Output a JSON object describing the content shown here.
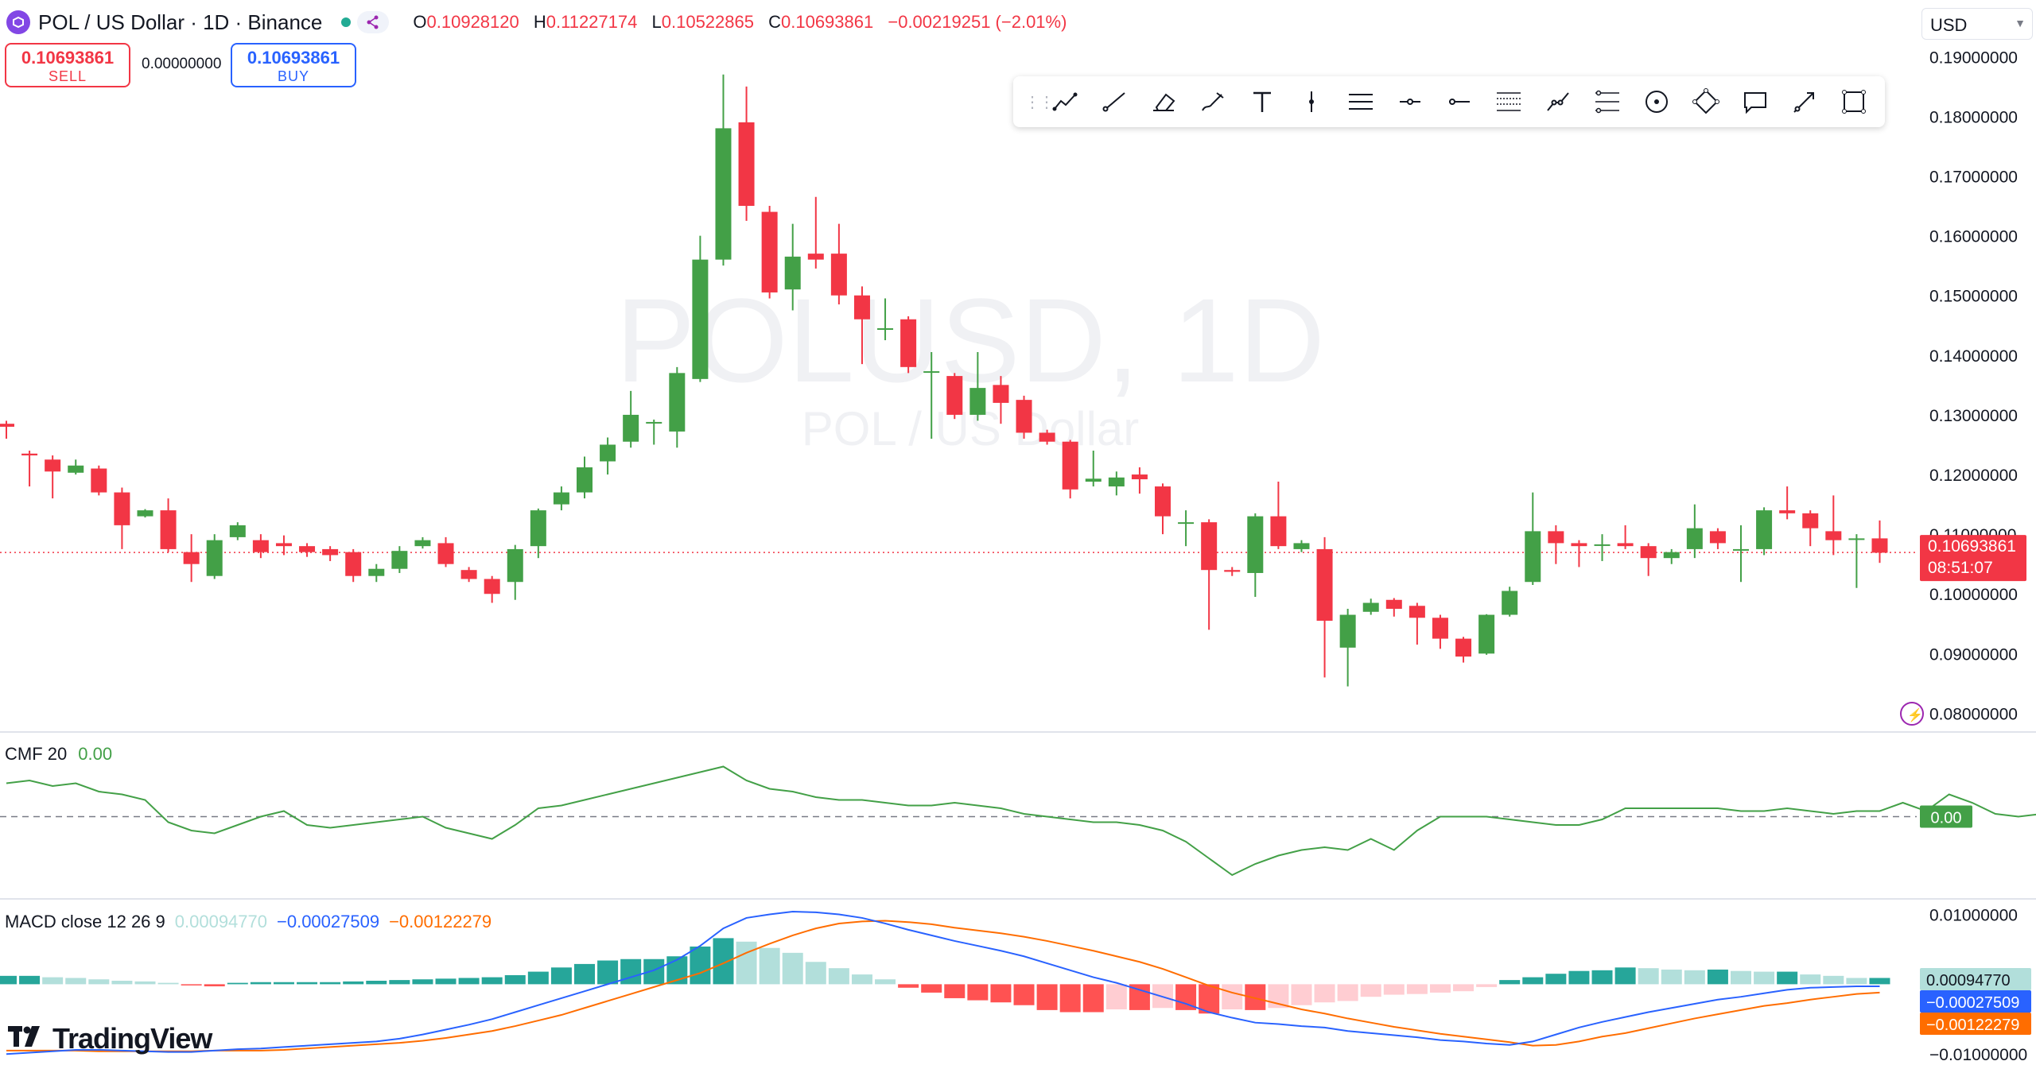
{
  "header": {
    "symbol_title": "POL / US Dollar · 1D · Binance",
    "ohlc": [
      {
        "key": "O",
        "value": "0.10928120"
      },
      {
        "key": "H",
        "value": "0.11227174"
      },
      {
        "key": "L",
        "value": "0.10522865"
      },
      {
        "key": "C",
        "value": "0.10693861"
      }
    ],
    "change": "−0.00219251 (−2.01%)",
    "status_color": "#22ab94"
  },
  "trade": {
    "sell_price": "0.10693861",
    "sell_label": "SELL",
    "spread": "0.00000000",
    "buy_price": "0.10693861",
    "buy_label": "BUY"
  },
  "currency": "USD",
  "watermark": {
    "primary": "POLUSD, 1D",
    "secondary": "POL / US Dollar"
  },
  "toolbar": {
    "icons": [
      "trend-line-icon",
      "ray-icon",
      "eraser-icon",
      "brush-icon",
      "text-icon",
      "vertical-line-icon",
      "parallel-lines-icon",
      "horizontal-ray-icon",
      "horizontal-line-icon",
      "fib-retracement-icon",
      "path-icon",
      "fib-channel-icon",
      "circle-icon",
      "rotated-rectangle-icon",
      "callout-icon",
      "arrow-icon",
      "rectangle-icon"
    ]
  },
  "colors": {
    "up": "#43a047",
    "down": "#f23645",
    "macd": "#2962ff",
    "signal": "#ff6d00",
    "cmf": "#43a047",
    "hist_up_strong": "#26a69a",
    "hist_up_weak": "#b2dfdb",
    "hist_down_strong": "#ff5252",
    "hist_down_weak": "#ffcdd2"
  },
  "chart_data": [
    {
      "type": "candlestick",
      "title": "POL / US Dollar · 1D · Binance",
      "ylim": [
        0.077,
        0.1915
      ],
      "yticks": [
        "0.19000000",
        "0.18000000",
        "0.17000000",
        "0.16000000",
        "0.15000000",
        "0.14000000",
        "0.13000000",
        "0.12000000",
        "0.11000000",
        "0.10000000",
        "0.09000000",
        "0.08000000"
      ],
      "last_price_label": "0.10693861",
      "countdown_label": "08:51:07",
      "last_price": 0.10693861,
      "candles": [
        [
          0.1285,
          0.128,
          0.129,
          0.126
        ],
        [
          0.1235,
          0.1232,
          0.124,
          0.118
        ],
        [
          0.1225,
          0.1205,
          0.1232,
          0.116
        ],
        [
          0.1203,
          0.1215,
          0.1225,
          0.12
        ],
        [
          0.121,
          0.117,
          0.1215,
          0.1165
        ],
        [
          0.117,
          0.1115,
          0.1178,
          0.1075
        ],
        [
          0.113,
          0.114,
          0.1142,
          0.1128
        ],
        [
          0.114,
          0.1075,
          0.116,
          0.107
        ],
        [
          0.107,
          0.105,
          0.11,
          0.102
        ],
        [
          0.103,
          0.109,
          0.11,
          0.1025
        ],
        [
          0.1095,
          0.1115,
          0.112,
          0.109
        ],
        [
          0.109,
          0.107,
          0.11,
          0.106
        ],
        [
          0.1085,
          0.108,
          0.1098,
          0.1065
        ],
        [
          0.108,
          0.107,
          0.1085,
          0.1062
        ],
        [
          0.1075,
          0.1065,
          0.108,
          0.1055
        ],
        [
          0.107,
          0.103,
          0.1075,
          0.102
        ],
        [
          0.103,
          0.1042,
          0.105,
          0.102
        ],
        [
          0.1042,
          0.1072,
          0.108,
          0.1035
        ],
        [
          0.108,
          0.109,
          0.1095,
          0.1076
        ],
        [
          0.1085,
          0.105,
          0.1095,
          0.1045
        ],
        [
          0.104,
          0.1025,
          0.1045,
          0.102
        ],
        [
          0.1025,
          0.1,
          0.103,
          0.0985
        ],
        [
          0.102,
          0.1075,
          0.1082,
          0.099
        ],
        [
          0.108,
          0.114,
          0.1143,
          0.106
        ],
        [
          0.115,
          0.117,
          0.118,
          0.114
        ],
        [
          0.117,
          0.1212,
          0.123,
          0.116
        ],
        [
          0.1222,
          0.125,
          0.1262,
          0.12
        ],
        [
          0.1255,
          0.13,
          0.134,
          0.1245
        ],
        [
          0.1288,
          0.1288,
          0.1292,
          0.125
        ],
        [
          0.1272,
          0.137,
          0.138,
          0.1245
        ],
        [
          0.136,
          0.156,
          0.16,
          0.1355
        ],
        [
          0.156,
          0.178,
          0.187,
          0.155
        ],
        [
          0.179,
          0.165,
          0.185,
          0.1625
        ],
        [
          0.164,
          0.1505,
          0.165,
          0.1495
        ],
        [
          0.151,
          0.1565,
          0.162,
          0.1475
        ],
        [
          0.157,
          0.156,
          0.1665,
          0.1545
        ],
        [
          0.157,
          0.15,
          0.162,
          0.1485
        ],
        [
          0.15,
          0.146,
          0.1515,
          0.1385
        ],
        [
          0.1445,
          0.1445,
          0.1495,
          0.1425
        ],
        [
          0.146,
          0.138,
          0.1465,
          0.137
        ],
        [
          0.1373,
          0.1373,
          0.1405,
          0.126
        ],
        [
          0.1365,
          0.13,
          0.137,
          0.1293
        ],
        [
          0.13,
          0.1345,
          0.1405,
          0.129
        ],
        [
          0.135,
          0.132,
          0.1365,
          0.1285
        ],
        [
          0.1325,
          0.127,
          0.1332,
          0.126
        ],
        [
          0.127,
          0.1255,
          0.1275,
          0.125
        ],
        [
          0.1255,
          0.1175,
          0.1258,
          0.116
        ],
        [
          0.1188,
          0.1193,
          0.124,
          0.118
        ],
        [
          0.118,
          0.1195,
          0.1205,
          0.1165
        ],
        [
          0.12,
          0.1192,
          0.1212,
          0.1168
        ],
        [
          0.118,
          0.113,
          0.1185,
          0.11
        ],
        [
          0.112,
          0.112,
          0.114,
          0.108
        ],
        [
          0.112,
          0.104,
          0.1125,
          0.094
        ],
        [
          0.104,
          0.1037,
          0.1045,
          0.103
        ],
        [
          0.1035,
          0.113,
          0.1135,
          0.0995
        ],
        [
          0.113,
          0.108,
          0.1188,
          0.1075
        ],
        [
          0.1075,
          0.1085,
          0.109,
          0.107
        ],
        [
          0.1075,
          0.0955,
          0.1095,
          0.086
        ],
        [
          0.091,
          0.0965,
          0.0975,
          0.0845
        ],
        [
          0.097,
          0.0985,
          0.0992,
          0.0965
        ],
        [
          0.099,
          0.0975,
          0.0993,
          0.0962
        ],
        [
          0.098,
          0.096,
          0.0985,
          0.0915
        ],
        [
          0.096,
          0.0925,
          0.0965,
          0.0908
        ],
        [
          0.0925,
          0.0895,
          0.0928,
          0.0885
        ],
        [
          0.09,
          0.0965,
          0.0966,
          0.0898
        ],
        [
          0.0965,
          0.1005,
          0.1012,
          0.0962
        ],
        [
          0.102,
          0.1105,
          0.117,
          0.1015
        ],
        [
          0.1105,
          0.1085,
          0.1115,
          0.105
        ],
        [
          0.1085,
          0.108,
          0.109,
          0.1045
        ],
        [
          0.1082,
          0.1083,
          0.11,
          0.1055
        ],
        [
          0.1085,
          0.108,
          0.1115,
          0.1075
        ],
        [
          0.108,
          0.106,
          0.1085,
          0.103
        ],
        [
          0.106,
          0.107,
          0.1075,
          0.105
        ],
        [
          0.1075,
          0.111,
          0.115,
          0.106
        ],
        [
          0.1105,
          0.1085,
          0.111,
          0.1075
        ],
        [
          0.1075,
          0.1075,
          0.1115,
          0.102
        ],
        [
          0.1075,
          0.114,
          0.1145,
          0.1065
        ],
        [
          0.114,
          0.1135,
          0.118,
          0.1125
        ],
        [
          0.1135,
          0.111,
          0.114,
          0.108
        ],
        [
          0.1105,
          0.109,
          0.1165,
          0.1065
        ],
        [
          0.1093,
          0.1093,
          0.11,
          0.101
        ],
        [
          0.1093,
          0.1069,
          0.1123,
          0.1052
        ]
      ]
    },
    {
      "type": "line",
      "title": "CMF 20",
      "value_label": "0.00",
      "ylim": [
        -0.25,
        0.25
      ],
      "zero_line": true,
      "values": [
        0.12,
        0.13,
        0.11,
        0.12,
        0.09,
        0.08,
        0.06,
        -0.02,
        -0.05,
        -0.06,
        -0.03,
        0.0,
        0.02,
        -0.03,
        -0.04,
        -0.03,
        -0.02,
        -0.01,
        0.0,
        -0.04,
        -0.06,
        -0.08,
        -0.03,
        0.03,
        0.04,
        0.06,
        0.08,
        0.1,
        0.12,
        0.14,
        0.16,
        0.18,
        0.13,
        0.1,
        0.09,
        0.07,
        0.06,
        0.06,
        0.05,
        0.04,
        0.04,
        0.05,
        0.04,
        0.03,
        0.01,
        0.0,
        -0.01,
        -0.02,
        -0.02,
        -0.03,
        -0.05,
        -0.09,
        -0.15,
        -0.21,
        -0.17,
        -0.14,
        -0.12,
        -0.11,
        -0.12,
        -0.08,
        -0.12,
        -0.05,
        0.0,
        0.0,
        0.0,
        -0.01,
        -0.02,
        -0.03,
        -0.03,
        -0.01,
        0.03,
        0.03,
        0.03,
        0.03,
        0.03,
        0.02,
        0.02,
        0.03,
        0.02,
        0.01,
        0.02,
        0.02,
        0.05,
        0.02,
        0.08,
        0.05,
        0.01,
        0.0,
        0.01,
        0.0
      ]
    },
    {
      "type": "bar+line",
      "title": "MACD close 12 26 9",
      "legend_values": [
        "0.00094770",
        "−0.00027509",
        "−0.00122279"
      ],
      "ylim": [
        -0.011,
        0.0112
      ],
      "yticks": [
        "0.01000000",
        "−0.01000000"
      ],
      "label_histogram": "0.00094770",
      "label_macd": "−0.00027509",
      "label_signal": "−0.00122279",
      "histogram": [
        0.0012,
        0.0012,
        0.001,
        0.0009,
        0.0007,
        0.0005,
        0.0004,
        0.0002,
        -0.0001,
        -0.0003,
        0.0002,
        0.0003,
        0.0003,
        0.0003,
        0.0003,
        0.0004,
        0.0005,
        0.0006,
        0.0007,
        0.0008,
        0.0009,
        0.001,
        0.0013,
        0.0018,
        0.0024,
        0.0029,
        0.0034,
        0.0036,
        0.0036,
        0.004,
        0.0054,
        0.0066,
        0.0061,
        0.0052,
        0.0045,
        0.0032,
        0.0023,
        0.0014,
        0.0007,
        -0.0005,
        -0.0012,
        -0.002,
        -0.0023,
        -0.0026,
        -0.003,
        -0.0037,
        -0.004,
        -0.004,
        -0.0036,
        -0.0037,
        -0.0034,
        -0.0037,
        -0.0042,
        -0.0036,
        -0.0037,
        -0.0034,
        -0.003,
        -0.0026,
        -0.0024,
        -0.0018,
        -0.0015,
        -0.0014,
        -0.0012,
        -0.001,
        -0.0004,
        0.0006,
        0.001,
        0.0015,
        0.0019,
        0.002,
        0.0024,
        0.0023,
        0.0021,
        0.002,
        0.0021,
        0.0019,
        0.0018,
        0.0018,
        0.0014,
        0.0012,
        0.0009,
        0.0009
      ],
      "macd": [
        -0.01,
        -0.0098,
        -0.0096,
        -0.0094,
        -0.0094,
        -0.0095,
        -0.0096,
        -0.0097,
        -0.0097,
        -0.0095,
        -0.0093,
        -0.0092,
        -0.009,
        -0.0088,
        -0.0086,
        -0.0084,
        -0.0082,
        -0.0078,
        -0.0072,
        -0.0065,
        -0.0058,
        -0.005,
        -0.004,
        -0.003,
        -0.002,
        -0.001,
        0.0,
        0.001,
        0.002,
        0.0035,
        0.0055,
        0.008,
        0.0095,
        0.01,
        0.0104,
        0.0103,
        0.01,
        0.0095,
        0.0087,
        0.0078,
        0.007,
        0.0062,
        0.0055,
        0.0048,
        0.004,
        0.003,
        0.002,
        0.001,
        0.0002,
        -0.0008,
        -0.0018,
        -0.0028,
        -0.004,
        -0.0048,
        -0.0055,
        -0.0057,
        -0.006,
        -0.0062,
        -0.0067,
        -0.007,
        -0.0073,
        -0.0076,
        -0.008,
        -0.0082,
        -0.0085,
        -0.0087,
        -0.0082,
        -0.0072,
        -0.0062,
        -0.0054,
        -0.0047,
        -0.004,
        -0.0034,
        -0.0028,
        -0.0022,
        -0.0018,
        -0.0013,
        -0.0008,
        -0.0005,
        -0.0004,
        -0.0003,
        -0.0003
      ],
      "signal": [
        -0.0095,
        -0.0095,
        -0.0095,
        -0.0095,
        -0.0096,
        -0.0096,
        -0.0096,
        -0.0096,
        -0.0096,
        -0.0095,
        -0.0095,
        -0.0095,
        -0.0094,
        -0.0092,
        -0.009,
        -0.0088,
        -0.0086,
        -0.0084,
        -0.0081,
        -0.0077,
        -0.0072,
        -0.0067,
        -0.006,
        -0.0052,
        -0.0044,
        -0.0034,
        -0.0024,
        -0.0014,
        -0.0004,
        0.0006,
        0.0016,
        0.003,
        0.0045,
        0.0058,
        0.007,
        0.008,
        0.0087,
        0.009,
        0.0091,
        0.0089,
        0.0086,
        0.0081,
        0.0077,
        0.0073,
        0.0068,
        0.0062,
        0.0055,
        0.0048,
        0.004,
        0.0032,
        0.0022,
        0.001,
        -0.0002,
        -0.0012,
        -0.002,
        -0.0028,
        -0.0036,
        -0.0042,
        -0.0049,
        -0.0055,
        -0.0061,
        -0.0066,
        -0.0071,
        -0.0075,
        -0.0079,
        -0.0083,
        -0.0088,
        -0.0087,
        -0.0082,
        -0.0075,
        -0.007,
        -0.0063,
        -0.0056,
        -0.0049,
        -0.0043,
        -0.0037,
        -0.0031,
        -0.0027,
        -0.0022,
        -0.0018,
        -0.0014,
        -0.0012
      ]
    }
  ],
  "cmf_label": {
    "name": "CMF 20",
    "value": "0.00"
  },
  "macd_label": {
    "name": "MACD close 12 26 9",
    "hist": "0.00094770",
    "macd": "−0.00027509",
    "signal": "−0.00122279"
  },
  "brand": "TradingView"
}
